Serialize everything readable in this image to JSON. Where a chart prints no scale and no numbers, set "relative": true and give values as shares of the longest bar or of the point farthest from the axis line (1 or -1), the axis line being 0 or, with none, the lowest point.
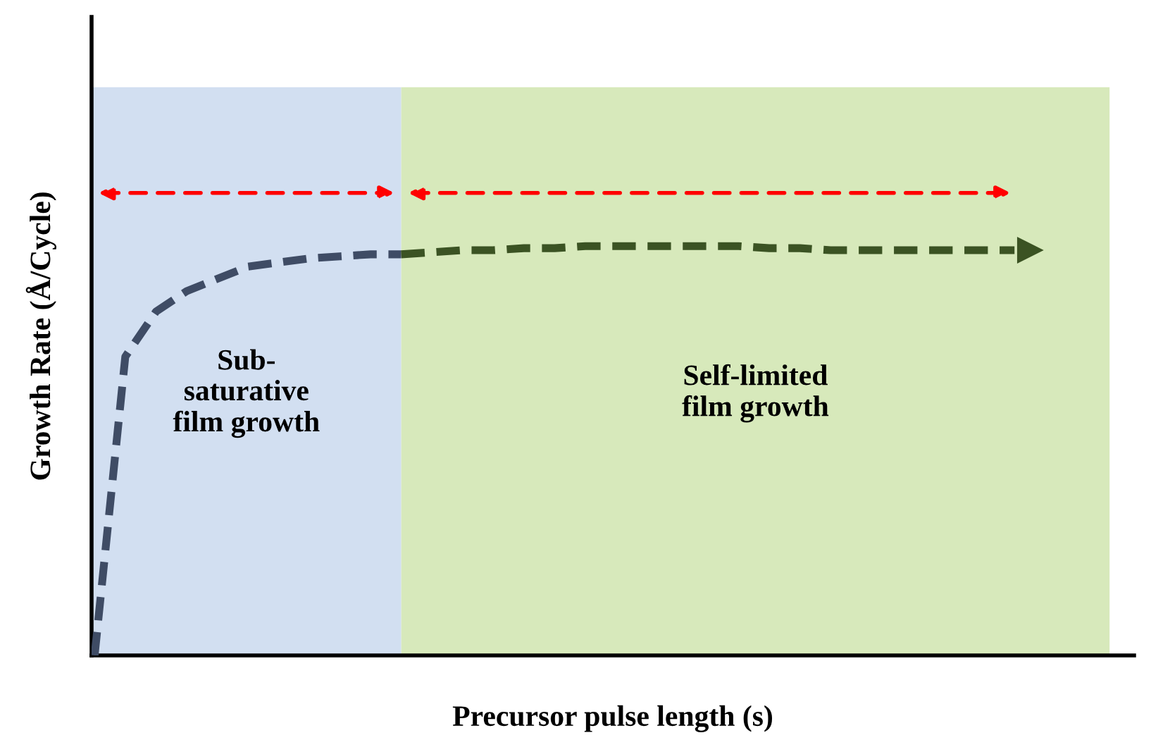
{
  "chart_data": {
    "type": "line",
    "relative": true,
    "xlabel": "Precursor pulse length (s)",
    "ylabel": "Growth Rate (Å/Cycle)",
    "categories": [
      null,
      null,
      null,
      null,
      null,
      null,
      null,
      null,
      null,
      null,
      null,
      null,
      null,
      null,
      null,
      null,
      null,
      null,
      null,
      null,
      null,
      null,
      null,
      null,
      null,
      null,
      null,
      null,
      null,
      null,
      null
    ],
    "line_style": "dashed",
    "legend": false,
    "series": [
      {
        "color": "#3f4c65",
        "values": [
          0,
          0.73,
          0.84,
          0.89,
          0.92,
          0.95,
          0.96,
          0.97,
          0.975,
          0.98,
          0.98,
          null,
          null,
          null,
          null,
          null,
          null,
          null,
          null,
          null,
          null,
          null,
          null,
          null,
          null,
          null,
          null,
          null,
          null,
          null,
          null
        ]
      },
      {
        "color": "#3b5323",
        "values": [
          null,
          null,
          null,
          null,
          null,
          null,
          null,
          null,
          null,
          null,
          0.98,
          0.985,
          0.99,
          0.99,
          0.995,
          0.995,
          1,
          1,
          1,
          1,
          1,
          1,
          0.995,
          0.995,
          0.99,
          0.99,
          0.99,
          0.99,
          0.99,
          0.99,
          0.99
        ]
      }
    ],
    "annotations": [
      "Sub-\nsaturative\nfilm growth",
      "Self-limited\nfilm growth"
    ]
  }
}
